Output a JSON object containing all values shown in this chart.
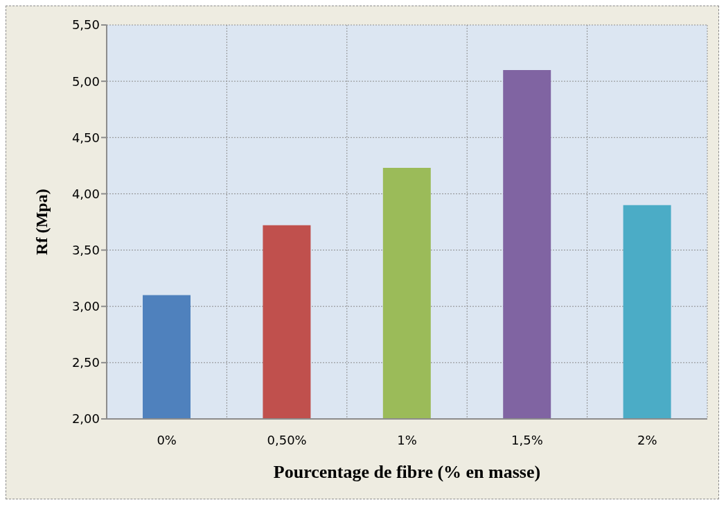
{
  "chart_data": {
    "type": "bar",
    "xlabel": "Pourcentage de fibre (% en masse)",
    "ylabel": "Rf (Mpa)",
    "categories": [
      "0%",
      "0,50%",
      "1%",
      "1,5%",
      "2%"
    ],
    "values": [
      3.1,
      3.72,
      4.23,
      5.1,
      3.9
    ],
    "colors": [
      "#4f81bd",
      "#c0504d",
      "#9bbb59",
      "#8064a2",
      "#4bacc6"
    ],
    "ylim": [
      2,
      5.5
    ],
    "yticks": [
      {
        "value": 2,
        "label": "2,00"
      },
      {
        "value": 2.5,
        "label": "2,50"
      },
      {
        "value": 3,
        "label": "3,00"
      },
      {
        "value": 3.5,
        "label": "3,50"
      },
      {
        "value": 4,
        "label": "4,00"
      },
      {
        "value": 4.5,
        "label": "4,50"
      },
      {
        "value": 5,
        "label": "5,00"
      },
      {
        "value": 5.5,
        "label": "5,50"
      }
    ],
    "grid": true,
    "legend": false
  }
}
